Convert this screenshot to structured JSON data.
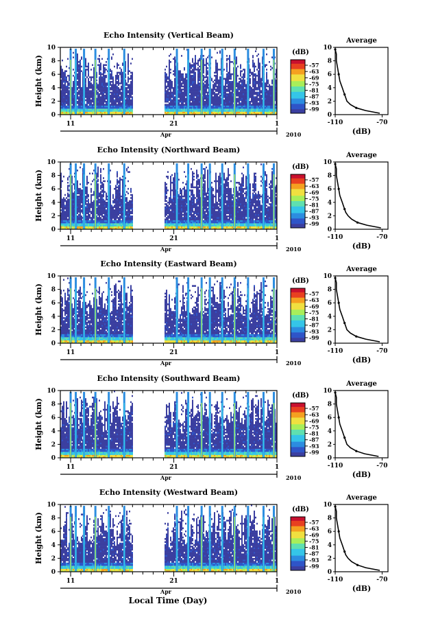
{
  "page": {
    "xaxis_title": "Local Time (Day)",
    "month_label": "Apr",
    "year_label": "2010",
    "height_label": "Height (km)",
    "colorbar_unit": "(dB)",
    "colorbar_ticks": [
      "-57",
      "-63",
      "-69",
      "-75",
      "-81",
      "-87",
      "-93",
      "-99"
    ],
    "avg_title": "Average",
    "avg_xlabel": "(dB)",
    "x_tick_labels": [
      "11",
      "21",
      "1"
    ],
    "y_tick_labels": [
      "10",
      "8",
      "6",
      "4",
      "2",
      "0"
    ],
    "avg_x_tick_labels": [
      "-110",
      "-70"
    ],
    "avg_y_tick_labels": [
      "10",
      "8",
      "6",
      "4",
      "2",
      "0"
    ]
  },
  "colors": {
    "palette": [
      "#3b3fa0",
      "#2f55c8",
      "#2c8de0",
      "#35c5e8",
      "#5fe0b0",
      "#a8ee5a",
      "#f0e040",
      "#f5a020",
      "#e84020",
      "#c8102e"
    ],
    "background": "#ffffff"
  },
  "chart_data": [
    {
      "type": "heatmap",
      "title": "Echo Intensity (Vertical Beam)",
      "xlabel": "Local Time (Day)",
      "ylabel": "Height (km)",
      "xlim": [
        "2010-04-10",
        "2010-05-01"
      ],
      "ylim": [
        0,
        10
      ],
      "data_gap": [
        "2010-04-17",
        "2010-04-20"
      ],
      "colorbar": {
        "label": "(dB)",
        "range": [
          -99,
          -57
        ],
        "ticks": [
          -57,
          -63,
          -69,
          -75,
          -81,
          -87,
          -93,
          -99
        ]
      },
      "profile": {
        "title": "Average",
        "xlabel": "(dB)",
        "xlim": [
          -110,
          -65
        ],
        "ylim": [
          0,
          10
        ],
        "height_km": [
          0.2,
          0.6,
          1,
          1.5,
          2,
          2.5,
          3,
          3.5,
          4,
          5,
          6,
          7,
          8,
          9,
          9.7
        ],
        "intensity_db": [
          -72,
          -84,
          -92,
          -97,
          -100,
          -101,
          -102,
          -103,
          -104,
          -106,
          -107,
          -108,
          -109,
          -109,
          -110
        ]
      }
    },
    {
      "type": "heatmap",
      "title": "Echo Intensity (Northward Beam)",
      "xlabel": "Local Time (Day)",
      "ylabel": "Height (km)",
      "xlim": [
        "2010-04-10",
        "2010-05-01"
      ],
      "ylim": [
        0,
        10
      ],
      "data_gap": [
        "2010-04-17",
        "2010-04-20"
      ],
      "colorbar": {
        "label": "(dB)",
        "range": [
          -99,
          -57
        ],
        "ticks": [
          -57,
          -63,
          -69,
          -75,
          -81,
          -87,
          -93,
          -99
        ]
      },
      "profile": {
        "title": "Average",
        "xlabel": "(dB)",
        "xlim": [
          -110,
          -65
        ],
        "ylim": [
          0,
          10
        ],
        "height_km": [
          0.2,
          0.6,
          1,
          1.5,
          2,
          2.5,
          3,
          3.5,
          4,
          5,
          6,
          7,
          8,
          9,
          9.7
        ],
        "intensity_db": [
          -71,
          -83,
          -91,
          -96,
          -99,
          -101,
          -102,
          -103,
          -104,
          -106,
          -107,
          -108,
          -109,
          -109,
          -110
        ]
      }
    },
    {
      "type": "heatmap",
      "title": "Echo Intensity (Eastward Beam)",
      "xlabel": "Local Time (Day)",
      "ylabel": "Height (km)",
      "xlim": [
        "2010-04-10",
        "2010-05-01"
      ],
      "ylim": [
        0,
        10
      ],
      "data_gap": [
        "2010-04-17",
        "2010-04-20"
      ],
      "colorbar": {
        "label": "(dB)",
        "range": [
          -99,
          -57
        ],
        "ticks": [
          -57,
          -63,
          -69,
          -75,
          -81,
          -87,
          -93,
          -99
        ]
      },
      "profile": {
        "title": "Average",
        "xlabel": "(dB)",
        "xlim": [
          -110,
          -65
        ],
        "ylim": [
          0,
          10
        ],
        "height_km": [
          0.2,
          0.6,
          1,
          1.5,
          2,
          2.5,
          3,
          3.5,
          4,
          5,
          6,
          7,
          8,
          9,
          9.7
        ],
        "intensity_db": [
          -72,
          -84,
          -92,
          -97,
          -100,
          -101,
          -102,
          -103,
          -104,
          -106,
          -107,
          -108,
          -109,
          -109,
          -110
        ]
      }
    },
    {
      "type": "heatmap",
      "title": "Echo Intensity (Southward Beam)",
      "xlabel": "Local Time (Day)",
      "ylabel": "Height (km)",
      "xlim": [
        "2010-04-10",
        "2010-05-01"
      ],
      "ylim": [
        0,
        10
      ],
      "data_gap": [
        "2010-04-17",
        "2010-04-20"
      ],
      "colorbar": {
        "label": "(dB)",
        "range": [
          -99,
          -57
        ],
        "ticks": [
          -57,
          -63,
          -69,
          -75,
          -81,
          -87,
          -93,
          -99
        ]
      },
      "profile": {
        "title": "Average",
        "xlabel": "(dB)",
        "xlim": [
          -110,
          -65
        ],
        "ylim": [
          0,
          10
        ],
        "height_km": [
          0.2,
          0.6,
          1,
          1.5,
          2,
          2.5,
          3,
          3.5,
          4,
          5,
          6,
          7,
          8,
          9,
          9.7
        ],
        "intensity_db": [
          -73,
          -85,
          -92,
          -97,
          -100,
          -101,
          -102,
          -103,
          -104,
          -106,
          -107,
          -108,
          -109,
          -109,
          -110
        ]
      }
    },
    {
      "type": "heatmap",
      "title": "Echo Intensity (Westward Beam)",
      "xlabel": "Local Time (Day)",
      "ylabel": "Height (km)",
      "xlim": [
        "2010-04-10",
        "2010-05-01"
      ],
      "ylim": [
        0,
        10
      ],
      "data_gap": [
        "2010-04-17",
        "2010-04-20"
      ],
      "colorbar": {
        "label": "(dB)",
        "range": [
          -99,
          -57
        ],
        "ticks": [
          -57,
          -63,
          -69,
          -75,
          -81,
          -87,
          -93,
          -99
        ]
      },
      "profile": {
        "title": "Average",
        "xlabel": "(dB)",
        "xlim": [
          -110,
          -65
        ],
        "ylim": [
          0,
          10
        ],
        "height_km": [
          0.2,
          0.6,
          1,
          1.5,
          2,
          2.5,
          3,
          3.5,
          4,
          5,
          6,
          7,
          8,
          9,
          9.7
        ],
        "intensity_db": [
          -72,
          -84,
          -91,
          -96,
          -99,
          -101,
          -102,
          -103,
          -104,
          -106,
          -107,
          -108,
          -109,
          -109,
          -110
        ]
      }
    }
  ]
}
